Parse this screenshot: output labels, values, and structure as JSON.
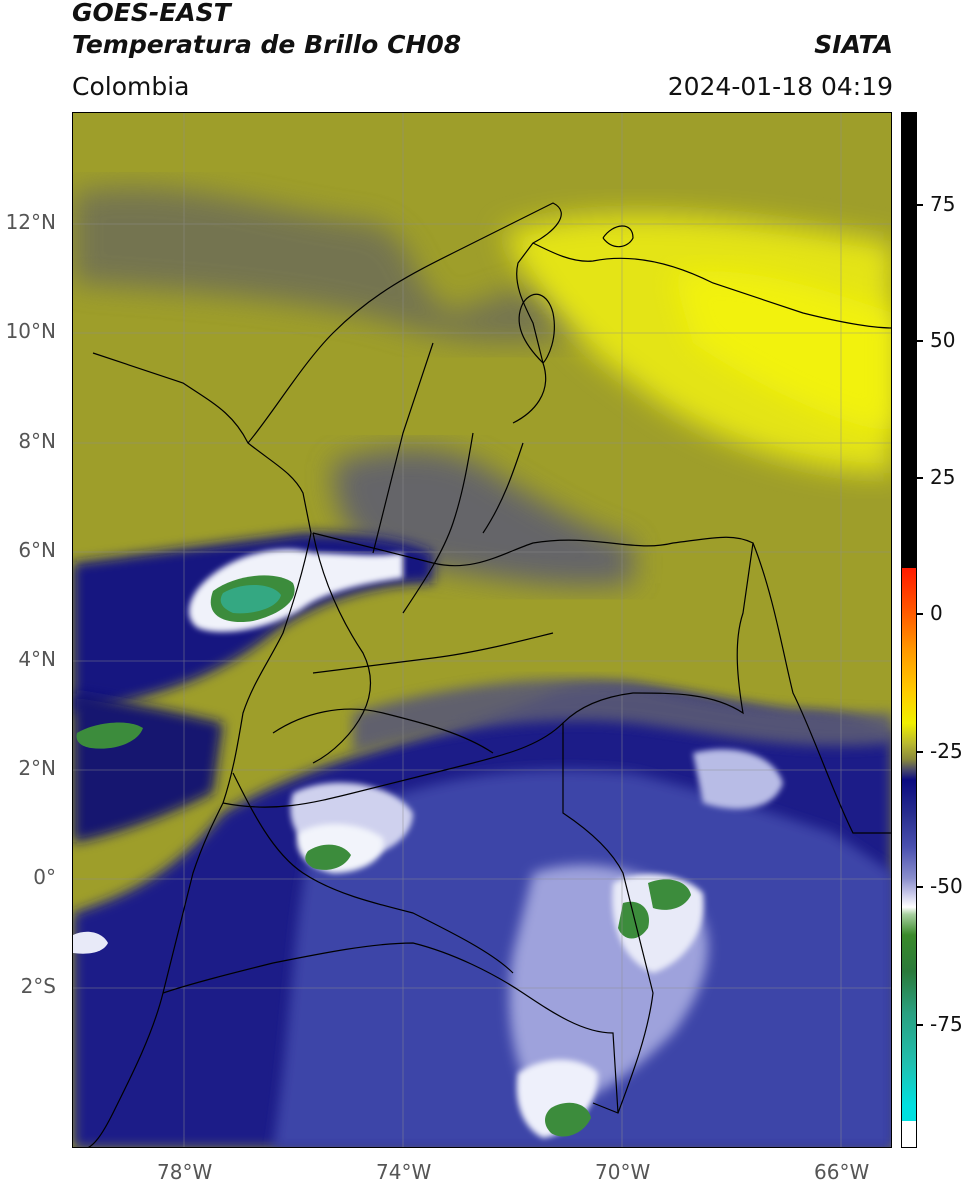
{
  "header": {
    "satellite": "GOES-EAST",
    "product": "Temperatura de Brillo CH08",
    "region": "Colombia",
    "agency": "SIATA",
    "timestamp": "2024-01-18 04:19"
  },
  "axes": {
    "lat_ticks": [
      "12°N",
      "10°N",
      "8°N",
      "6°N",
      "4°N",
      "2°N",
      "0°",
      "2°S"
    ],
    "lon_ticks": [
      "78°W",
      "74°W",
      "70°W",
      "66°W"
    ]
  },
  "colorbar": {
    "ticks": [
      "75",
      "50",
      "25",
      "0",
      "-25",
      "-50",
      "-75"
    ],
    "colors": {
      "black": "#000000",
      "red": "#ff2200",
      "orange": "#ff9900",
      "yellow": "#f0f000",
      "olive": "#a0a030",
      "gray": "#5a5a6a",
      "navy": "#0a0a80",
      "blue": "#4a50b0",
      "lavender": "#b8b8e0",
      "white": "#ffffff",
      "green": "#3a8a2a",
      "teal": "#2aa080",
      "cyan": "#00e0e0"
    }
  },
  "map": {
    "colors": {
      "bg_olive": "#9c9c2c",
      "bright_yellow": "#e8e814",
      "gray_band": "#5e5e6a",
      "dark_blue": "#101470",
      "mid_blue": "#3a42a0",
      "light_blue": "#9aa0d8",
      "cloud_white": "#eef0f8",
      "cloud_green": "#3c8c3c",
      "cloud_teal": "#34a882"
    }
  }
}
